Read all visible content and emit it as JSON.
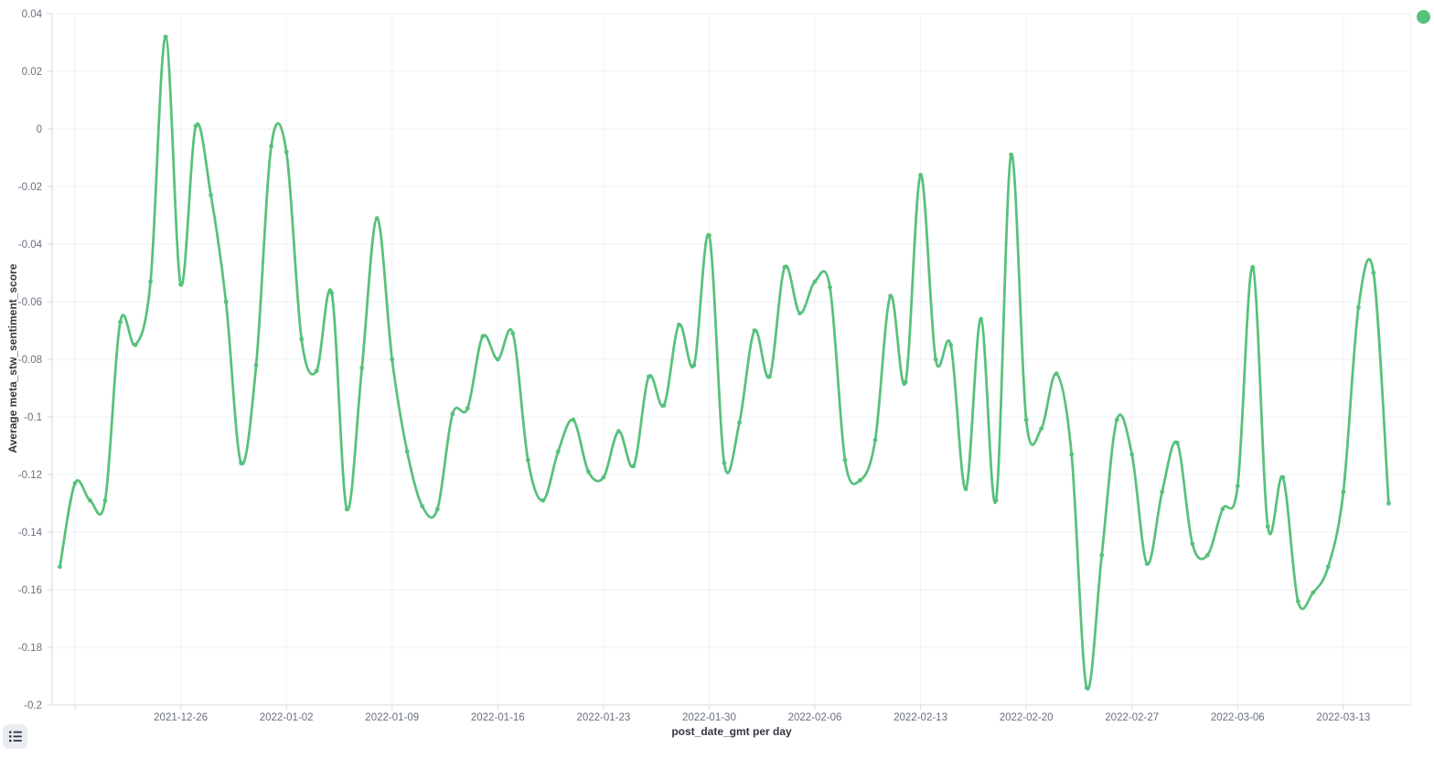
{
  "chart_data": {
    "type": "line",
    "x_axis": {
      "title": "post_date_gmt per day",
      "tick_labels": [
        "2021-12-26",
        "2022-01-02",
        "2022-01-09",
        "2022-01-16",
        "2022-01-23",
        "2022-01-30",
        "2022-02-06",
        "2022-02-13",
        "2022-02-20",
        "2022-02-27",
        "2022-03-06",
        "2022-03-13"
      ],
      "tick_indices": [
        8,
        15,
        22,
        29,
        36,
        43,
        50,
        57,
        64,
        71,
        78,
        85
      ],
      "extra_gridline_indices": [
        1
      ]
    },
    "y_axis": {
      "title": "Average meta_stw_sentiment_score",
      "tick_labels": [
        "0.04",
        "0.02",
        "0",
        "-0.02",
        "-0.04",
        "-0.06",
        "-0.08",
        "-0.1",
        "-0.12",
        "-0.14",
        "-0.16",
        "-0.18",
        "-0.2"
      ],
      "tick_values": [
        0.04,
        0.02,
        0,
        -0.02,
        -0.04,
        -0.06,
        -0.08,
        -0.1,
        -0.12,
        -0.14,
        -0.16,
        -0.18,
        -0.2
      ],
      "max": 0.04,
      "min": -0.2
    },
    "grid": true,
    "legend_position": "right-collapsed",
    "x": [
      "2021-12-18",
      "2021-12-19",
      "2021-12-20",
      "2021-12-21",
      "2021-12-22",
      "2021-12-23",
      "2021-12-24",
      "2021-12-25",
      "2021-12-26",
      "2021-12-27",
      "2021-12-28",
      "2021-12-29",
      "2021-12-30",
      "2021-12-31",
      "2022-01-01",
      "2022-01-02",
      "2022-01-03",
      "2022-01-04",
      "2022-01-05",
      "2022-01-06",
      "2022-01-07",
      "2022-01-08",
      "2022-01-09",
      "2022-01-10",
      "2022-01-11",
      "2022-01-12",
      "2022-01-13",
      "2022-01-14",
      "2022-01-15",
      "2022-01-16",
      "2022-01-17",
      "2022-01-18",
      "2022-01-19",
      "2022-01-20",
      "2022-01-21",
      "2022-01-22",
      "2022-01-23",
      "2022-01-24",
      "2022-01-25",
      "2022-01-26",
      "2022-01-27",
      "2022-01-28",
      "2022-01-29",
      "2022-01-30",
      "2022-01-31",
      "2022-02-01",
      "2022-02-02",
      "2022-02-03",
      "2022-02-04",
      "2022-02-05",
      "2022-02-06",
      "2022-02-07",
      "2022-02-08",
      "2022-02-09",
      "2022-02-10",
      "2022-02-11",
      "2022-02-12",
      "2022-02-13",
      "2022-02-14",
      "2022-02-15",
      "2022-02-16",
      "2022-02-17",
      "2022-02-18",
      "2022-02-19",
      "2022-02-20",
      "2022-02-21",
      "2022-02-22",
      "2022-02-23",
      "2022-02-24",
      "2022-02-25",
      "2022-02-26",
      "2022-02-27",
      "2022-02-28",
      "2022-03-01",
      "2022-03-02",
      "2022-03-03",
      "2022-03-04",
      "2022-03-05",
      "2022-03-06",
      "2022-03-07",
      "2022-03-08",
      "2022-03-09",
      "2022-03-10",
      "2022-03-11",
      "2022-03-12",
      "2022-03-13",
      "2022-03-14",
      "2022-03-15",
      "2022-03-16"
    ],
    "values": [
      -0.152,
      -0.123,
      -0.129,
      -0.129,
      -0.067,
      -0.075,
      -0.053,
      0.032,
      -0.054,
      0.001,
      -0.023,
      -0.06,
      -0.116,
      -0.082,
      -0.006,
      -0.008,
      -0.073,
      -0.084,
      -0.057,
      -0.132,
      -0.083,
      -0.031,
      -0.08,
      -0.112,
      -0.131,
      -0.132,
      -0.099,
      -0.097,
      -0.072,
      -0.08,
      -0.071,
      -0.115,
      -0.129,
      -0.112,
      -0.101,
      -0.119,
      -0.121,
      -0.105,
      -0.117,
      -0.086,
      -0.096,
      -0.068,
      -0.082,
      -0.037,
      -0.116,
      -0.102,
      -0.07,
      -0.086,
      -0.048,
      -0.064,
      -0.053,
      -0.055,
      -0.115,
      -0.122,
      -0.108,
      -0.058,
      -0.088,
      -0.016,
      -0.08,
      -0.075,
      -0.125,
      -0.066,
      -0.129,
      -0.009,
      -0.101,
      -0.104,
      -0.085,
      -0.113,
      -0.194,
      -0.148,
      -0.101,
      -0.113,
      -0.151,
      -0.126,
      -0.109,
      -0.144,
      -0.148,
      -0.132,
      -0.124,
      -0.048,
      -0.138,
      -0.121,
      -0.164,
      -0.161,
      -0.152,
      -0.126,
      -0.062,
      -0.05,
      -0.13
    ],
    "colors": {
      "line": "#57c17b",
      "marker": "#57c17b",
      "legend_dot": "#57c17b",
      "grid": "#eef0f4",
      "axis_line": "#d3dae6",
      "tick_text": "#69707d",
      "axis_title_text": "#343741",
      "background": "#ffffff",
      "button_bg": "#e9ecf2",
      "button_icon": "#343741"
    }
  }
}
